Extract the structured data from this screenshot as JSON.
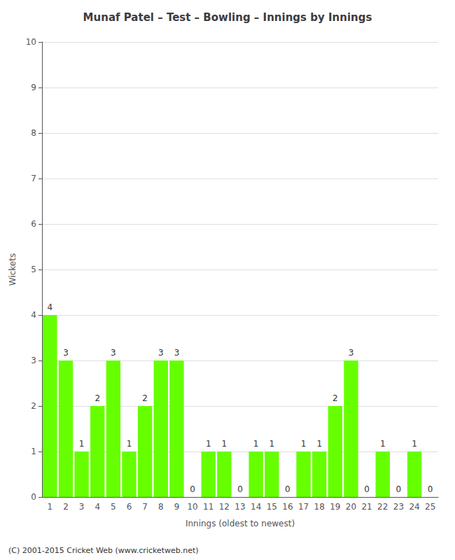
{
  "chart_data": {
    "type": "bar",
    "title": "Munaf Patel – Test – Bowling – Innings by Innings",
    "xlabel": "Innings (oldest to newest)",
    "ylabel": "Wickets",
    "categories": [
      "1",
      "2",
      "3",
      "4",
      "5",
      "6",
      "7",
      "8",
      "9",
      "10",
      "11",
      "12",
      "13",
      "14",
      "15",
      "16",
      "17",
      "18",
      "19",
      "20",
      "21",
      "22",
      "23",
      "24",
      "25"
    ],
    "values": [
      4,
      3,
      1,
      2,
      3,
      1,
      2,
      3,
      3,
      0,
      1,
      1,
      0,
      1,
      1,
      0,
      1,
      1,
      2,
      3,
      0,
      1,
      0,
      1,
      0
    ],
    "color": "#66ff00",
    "ylim": [
      0,
      10
    ],
    "yticks": [
      0,
      1,
      2,
      3,
      4,
      5,
      6,
      7,
      8,
      9,
      10
    ],
    "grid": true,
    "data_labels": true,
    "annotations": [
      "(C) 2001-2015 Cricket Web (www.cricketweb.net)"
    ]
  }
}
